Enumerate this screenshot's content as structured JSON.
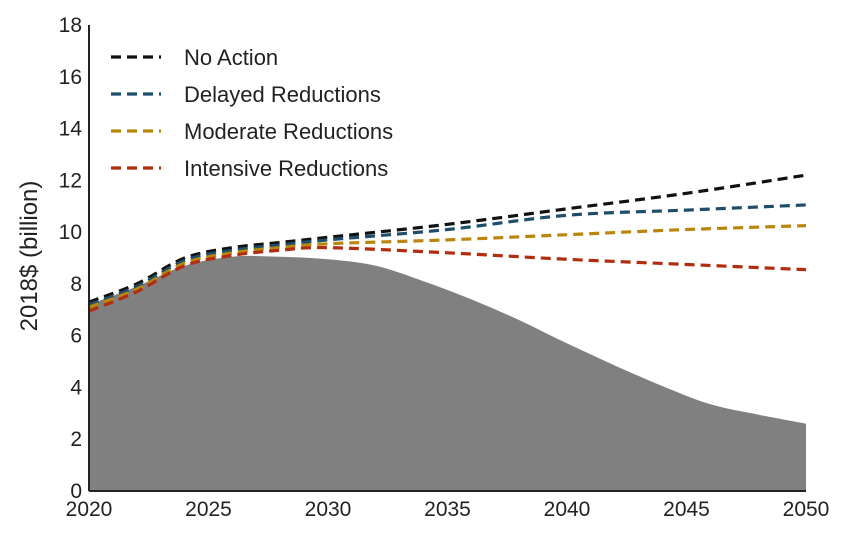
{
  "chart_data": {
    "type": "line",
    "title": "",
    "xlabel": "",
    "ylabel": "2018$ (billion)",
    "xlim": [
      2020,
      2050
    ],
    "ylim": [
      0,
      18
    ],
    "x_ticks": [
      2020,
      2025,
      2030,
      2035,
      2040,
      2045,
      2050
    ],
    "y_ticks": [
      0,
      2,
      4,
      6,
      8,
      10,
      12,
      14,
      16,
      18
    ],
    "grid": false,
    "legend_position": "top-left",
    "area": {
      "color": "#808080",
      "x": [
        2020,
        2022,
        2024,
        2026,
        2028,
        2030,
        2032,
        2034,
        2036,
        2038,
        2040,
        2042,
        2044,
        2046,
        2048,
        2050
      ],
      "values": [
        7.2,
        7.9,
        8.7,
        9.05,
        9.05,
        8.95,
        8.7,
        8.1,
        7.4,
        6.6,
        5.7,
        4.85,
        4.05,
        3.35,
        2.95,
        2.6
      ]
    },
    "series": [
      {
        "name": "No Action",
        "color": "#111111",
        "x": [
          2020,
          2022,
          2024,
          2026,
          2028,
          2030,
          2035,
          2040,
          2045,
          2050
        ],
        "values": [
          7.3,
          8.0,
          9.0,
          9.4,
          9.6,
          9.8,
          10.3,
          10.9,
          11.5,
          12.2
        ]
      },
      {
        "name": "Delayed Reductions",
        "color": "#1f4e6b",
        "x": [
          2020,
          2022,
          2024,
          2026,
          2028,
          2030,
          2035,
          2040,
          2045,
          2050
        ],
        "values": [
          7.2,
          7.9,
          8.9,
          9.3,
          9.5,
          9.7,
          10.1,
          10.65,
          10.85,
          11.05
        ]
      },
      {
        "name": "Moderate Reductions",
        "color": "#b8860b",
        "x": [
          2020,
          2022,
          2024,
          2026,
          2028,
          2030,
          2035,
          2040,
          2045,
          2050
        ],
        "values": [
          7.1,
          7.8,
          8.8,
          9.2,
          9.4,
          9.55,
          9.7,
          9.9,
          10.1,
          10.25
        ]
      },
      {
        "name": "Intensive Reductions",
        "color": "#b22c10",
        "x": [
          2020,
          2022,
          2024,
          2026,
          2028,
          2030,
          2035,
          2040,
          2045,
          2050
        ],
        "values": [
          6.95,
          7.7,
          8.7,
          9.1,
          9.3,
          9.4,
          9.2,
          8.95,
          8.75,
          8.55
        ]
      }
    ]
  }
}
